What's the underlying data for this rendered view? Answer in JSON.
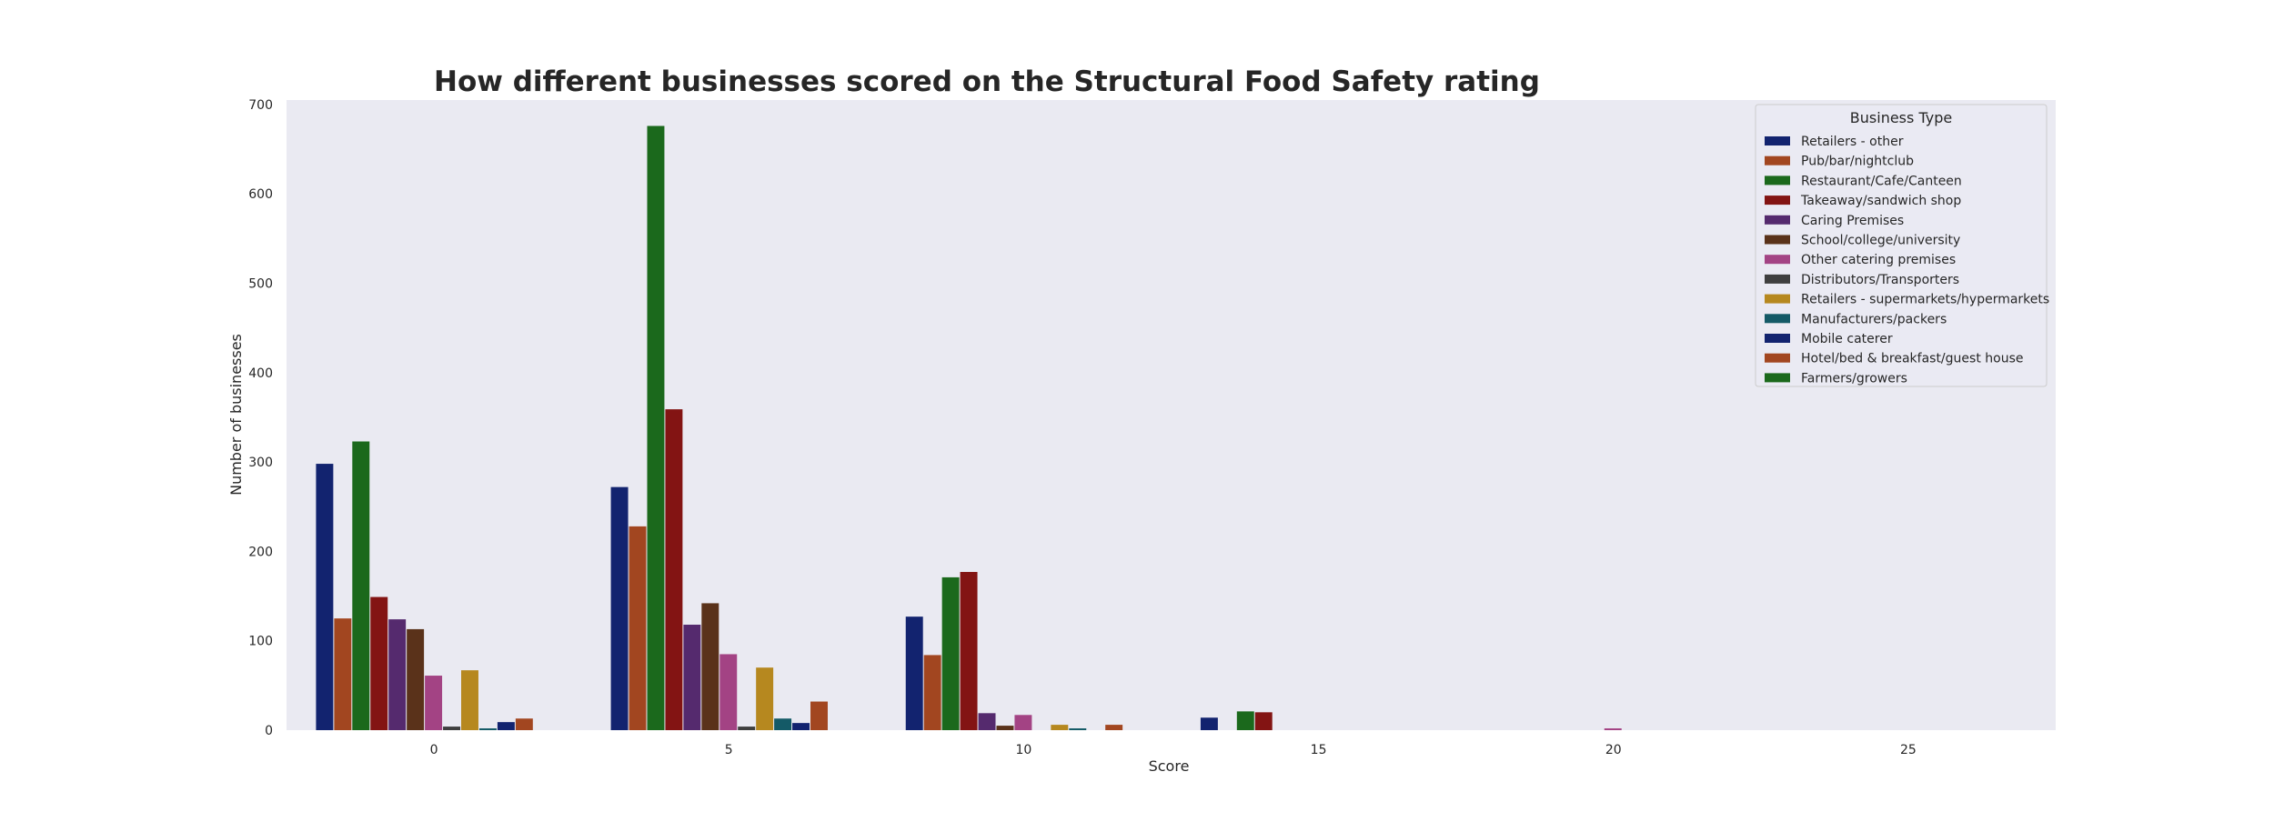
{
  "chart_data": {
    "type": "bar",
    "title": "How different businesses scored on the Structural Food Safety rating",
    "xlabel": "Score",
    "ylabel": "Number of businesses",
    "categories": [
      "0",
      "5",
      "10",
      "15",
      "20",
      "25"
    ],
    "ylim": [
      0,
      705
    ],
    "yticks": [
      0,
      100,
      200,
      300,
      400,
      500,
      600,
      700
    ],
    "background": "#eaeaf2",
    "legend": {
      "title": "Business Type",
      "position": "top-right"
    },
    "series": [
      {
        "name": "Retailers - other",
        "color": "#12236f",
        "values": [
          298,
          272,
          127,
          14,
          0,
          0
        ]
      },
      {
        "name": "Pub/bar/nightclub",
        "color": "#a24620",
        "values": [
          125,
          228,
          84,
          0,
          0,
          0
        ]
      },
      {
        "name": "Restaurant/Cafe/Canteen",
        "color": "#1b691c",
        "values": [
          323,
          676,
          171,
          21,
          0,
          0
        ]
      },
      {
        "name": "Takeaway/sandwich shop",
        "color": "#831413",
        "values": [
          149,
          359,
          177,
          20,
          0,
          0
        ]
      },
      {
        "name": "Caring Premises",
        "color": "#552a6e",
        "values": [
          124,
          118,
          19,
          0,
          0,
          0
        ]
      },
      {
        "name": "School/college/university",
        "color": "#5a321a",
        "values": [
          113,
          142,
          5,
          0,
          0,
          0
        ]
      },
      {
        "name": "Other catering premises",
        "color": "#a34384",
        "values": [
          61,
          85,
          17,
          0,
          2,
          0
        ]
      },
      {
        "name": "Distributors/Transporters",
        "color": "#3f3f3f",
        "values": [
          4,
          4,
          0,
          0,
          0,
          0
        ]
      },
      {
        "name": "Retailers - supermarkets/hypermarkets",
        "color": "#b6881f",
        "values": [
          67,
          70,
          6,
          0,
          0,
          0
        ]
      },
      {
        "name": "Manufacturers/packers",
        "color": "#145a67",
        "values": [
          2,
          13,
          2,
          0,
          0,
          0
        ]
      },
      {
        "name": "Mobile caterer",
        "color": "#12236f",
        "values": [
          9,
          8,
          0,
          0,
          0,
          0
        ]
      },
      {
        "name": "Hotel/bed & breakfast/guest house",
        "color": "#a24620",
        "values": [
          13,
          32,
          6,
          0,
          0,
          0
        ]
      },
      {
        "name": "Farmers/growers",
        "color": "#1b691c",
        "values": [
          0,
          0,
          0,
          0,
          0,
          0
        ]
      }
    ]
  }
}
